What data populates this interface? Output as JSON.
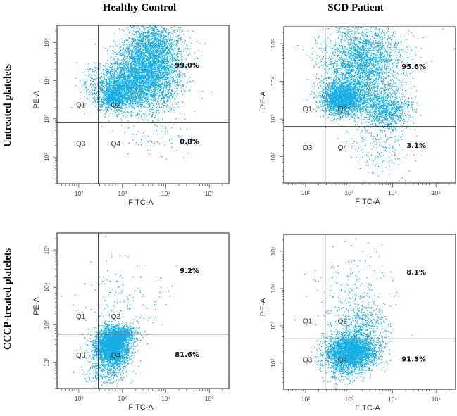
{
  "colors": {
    "dots": "#17aee5",
    "frame": "#222222"
  },
  "column_titles": [
    "Healthy Control",
    "SCD Patient"
  ],
  "row_titles": [
    "Untreated platelets",
    "CCCP-treated platelets"
  ],
  "chart_data": [
    {
      "type": "scatter",
      "id": "untreated-healthy",
      "xlabel": "FITC-A",
      "ylabel": "PE-A",
      "x_scale": "log",
      "y_scale": "log",
      "x_ticks": [
        "10²",
        "10³",
        "10⁴",
        "10⁵"
      ],
      "y_ticks": [
        "10²",
        "10³",
        "10⁴",
        "10⁵"
      ],
      "quadrant_labels": [
        "Q1",
        "Q2",
        "Q3",
        "Q4"
      ],
      "percentages": {
        "upper_right": "99.0%",
        "lower_right": "0.8%"
      },
      "gate": {
        "x_log": 2.45,
        "y_log": 2.9
      },
      "xlim_log": [
        1.5,
        5.45
      ],
      "ylim_log": [
        1.3,
        5.45
      ],
      "clusters": [
        {
          "cx": 3.0,
          "cy": 3.85,
          "sx": 0.36,
          "sy": 0.3,
          "n": 2000
        },
        {
          "cx": 3.65,
          "cy": 4.45,
          "sx": 0.36,
          "sy": 0.55,
          "n": 4200
        },
        {
          "cx": 2.8,
          "cy": 3.55,
          "sx": 0.18,
          "sy": 0.16,
          "n": 700
        },
        {
          "cx": 3.7,
          "cy": 2.45,
          "sx": 0.45,
          "sy": 0.3,
          "n": 70
        }
      ]
    },
    {
      "type": "scatter",
      "id": "untreated-scd",
      "xlabel": "FITC-A",
      "ylabel": "PE-A",
      "x_scale": "log",
      "y_scale": "log",
      "x_ticks": [
        "10²",
        "10³",
        "10⁴",
        "10⁵"
      ],
      "y_ticks": [
        "10²",
        "10³",
        "10⁴",
        "10⁵"
      ],
      "quadrant_labels": [
        "Q1",
        "Q2",
        "Q3",
        "Q4"
      ],
      "percentages": {
        "upper_right": "95.6%",
        "lower_right": "3.1%"
      },
      "gate": {
        "x_log": 2.45,
        "y_log": 2.8
      },
      "xlim_log": [
        1.5,
        5.45
      ],
      "ylim_log": [
        1.3,
        5.45
      ],
      "clusters": [
        {
          "cx": 2.85,
          "cy": 3.55,
          "sx": 0.25,
          "sy": 0.22,
          "n": 2400
        },
        {
          "cx": 3.3,
          "cy": 4.35,
          "sx": 0.42,
          "sy": 0.55,
          "n": 2600
        },
        {
          "cx": 3.85,
          "cy": 3.25,
          "sx": 0.28,
          "sy": 0.28,
          "n": 900
        },
        {
          "cx": 3.75,
          "cy": 2.3,
          "sx": 0.35,
          "sy": 0.45,
          "n": 220
        },
        {
          "cx": 3.5,
          "cy": 4.9,
          "sx": 0.6,
          "sy": 0.3,
          "n": 250
        }
      ]
    },
    {
      "type": "scatter",
      "id": "cccp-healthy",
      "xlabel": "FITC-A",
      "ylabel": "PE-A",
      "x_scale": "log",
      "y_scale": "log",
      "x_ticks": [
        "10²",
        "10³",
        "10⁴",
        "10⁵"
      ],
      "y_ticks": [
        "10²",
        "10³",
        "10⁴",
        "10⁵"
      ],
      "quadrant_labels": [
        "Q1",
        "Q2",
        "Q3",
        "Q4"
      ],
      "percentages": {
        "upper_right": "9.2%",
        "lower_right": "81.6%"
      },
      "gate": {
        "x_log": 2.45,
        "y_log": 2.75
      },
      "xlim_log": [
        1.5,
        5.45
      ],
      "ylim_log": [
        1.3,
        5.45
      ],
      "clusters": [
        {
          "cx": 2.75,
          "cy": 2.4,
          "sx": 0.2,
          "sy": 0.25,
          "n": 3000
        },
        {
          "cx": 2.95,
          "cy": 2.75,
          "sx": 0.18,
          "sy": 0.12,
          "n": 700
        },
        {
          "cx": 3.0,
          "cy": 3.6,
          "sx": 0.5,
          "sy": 0.7,
          "n": 160
        },
        {
          "cx": 2.6,
          "cy": 1.75,
          "sx": 0.25,
          "sy": 0.2,
          "n": 280
        }
      ]
    },
    {
      "type": "scatter",
      "id": "cccp-scd",
      "xlabel": "FITC-A",
      "ylabel": "PE-A",
      "x_scale": "log",
      "y_scale": "log",
      "x_ticks": [
        "10²",
        "10³",
        "10⁴",
        "10⁵"
      ],
      "y_ticks": [
        "10²",
        "10³",
        "10⁴",
        "10⁵"
      ],
      "quadrant_labels": [
        "Q1",
        "Q2",
        "Q3",
        "Q4"
      ],
      "percentages": {
        "upper_right": "8.1%",
        "lower_right": "91.3%"
      },
      "gate": {
        "x_log": 2.45,
        "y_log": 2.65
      },
      "xlim_log": [
        1.5,
        5.45
      ],
      "ylim_log": [
        1.3,
        5.45
      ],
      "clusters": [
        {
          "cx": 3.05,
          "cy": 2.3,
          "sx": 0.28,
          "sy": 0.22,
          "n": 3200
        },
        {
          "cx": 3.25,
          "cy": 2.95,
          "sx": 0.3,
          "sy": 0.35,
          "n": 500
        },
        {
          "cx": 3.15,
          "cy": 3.8,
          "sx": 0.45,
          "sy": 0.6,
          "n": 200
        },
        {
          "cx": 2.9,
          "cy": 1.85,
          "sx": 0.25,
          "sy": 0.2,
          "n": 250
        }
      ]
    }
  ]
}
